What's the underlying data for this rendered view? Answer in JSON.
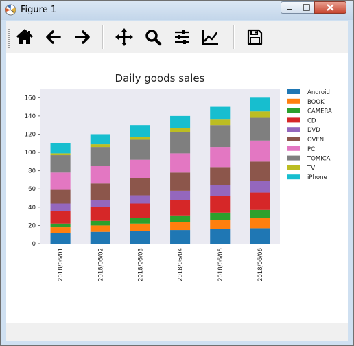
{
  "window": {
    "title": "Figure 1"
  },
  "toolbar": [
    {
      "name": "home-button",
      "icon": "home-icon"
    },
    {
      "name": "back-button",
      "icon": "arrow-left-icon"
    },
    {
      "name": "forward-button",
      "icon": "arrow-right-icon"
    },
    {
      "name": "pan-button",
      "icon": "move-icon"
    },
    {
      "name": "zoom-button",
      "icon": "magnifier-icon"
    },
    {
      "name": "subplots-button",
      "icon": "sliders-icon"
    },
    {
      "name": "edit-axis-button",
      "icon": "line-chart-icon"
    },
    {
      "name": "save-button",
      "icon": "floppy-disk-icon"
    }
  ],
  "chart_data": {
    "type": "bar",
    "stacked": true,
    "title": "Daily goods sales",
    "xlabel": "",
    "ylabel": "",
    "ylim": [
      0,
      170
    ],
    "yticks": [
      0,
      20,
      40,
      60,
      80,
      100,
      120,
      140,
      160
    ],
    "grid": false,
    "legend": "outside-right",
    "background": "#eaeaf2",
    "categories": [
      "2018/06/01",
      "2018/06/02",
      "2018/06/03",
      "2018/06/04",
      "2018/06/05",
      "2018/06/06"
    ],
    "series": [
      {
        "name": "Android",
        "color": "#1f77b4",
        "values": [
          12,
          13,
          14,
          15,
          16,
          17
        ]
      },
      {
        "name": "BOOK",
        "color": "#ff7f0e",
        "values": [
          6,
          7,
          8,
          9,
          10,
          11
        ]
      },
      {
        "name": "CAMERA",
        "color": "#2ca02c",
        "values": [
          4,
          5,
          6,
          7,
          8,
          9
        ]
      },
      {
        "name": "CD",
        "color": "#d62728",
        "values": [
          14,
          15,
          16,
          17,
          18,
          19
        ]
      },
      {
        "name": "DVD",
        "color": "#9467bd",
        "values": [
          8,
          8,
          9,
          10,
          12,
          13
        ]
      },
      {
        "name": "OVEN",
        "color": "#8c564b",
        "values": [
          15,
          18,
          19,
          20,
          20,
          21
        ]
      },
      {
        "name": "PC",
        "color": "#e377c2",
        "values": [
          19,
          19,
          20,
          21,
          22,
          23
        ]
      },
      {
        "name": "TOMICA",
        "color": "#7f7f7f",
        "values": [
          19,
          21,
          22,
          23,
          24,
          25
        ]
      },
      {
        "name": "TV",
        "color": "#bcbd22",
        "values": [
          2,
          3,
          3,
          5,
          6,
          7
        ]
      },
      {
        "name": "iPhone",
        "color": "#17becf",
        "values": [
          11,
          11,
          13,
          13,
          14,
          15
        ]
      }
    ]
  }
}
